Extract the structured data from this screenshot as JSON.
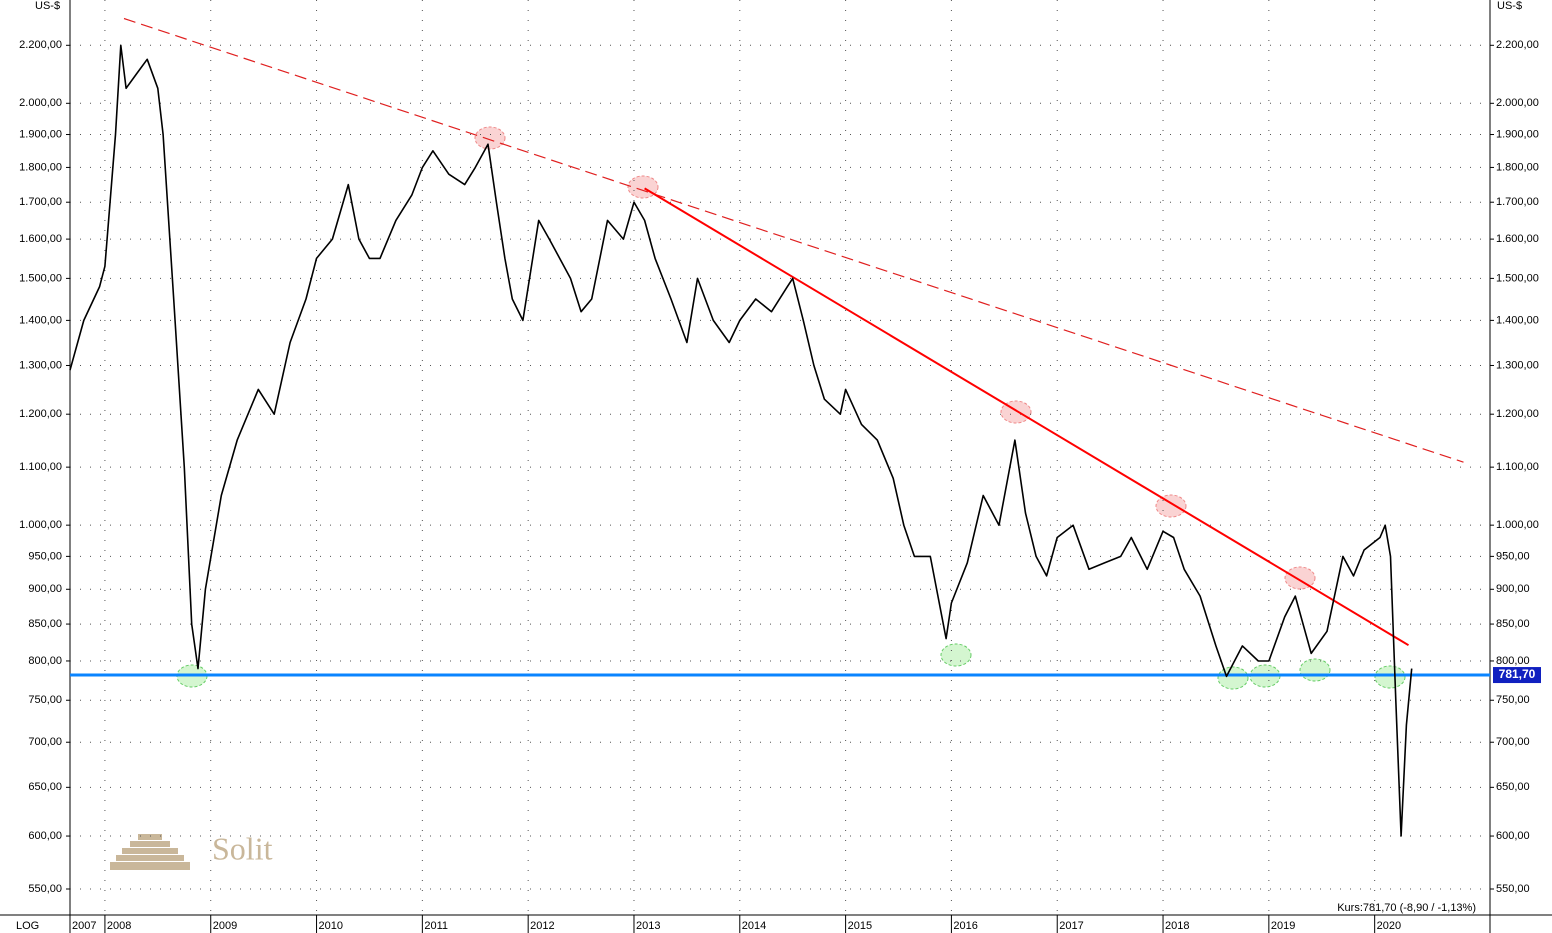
{
  "chart_data": {
    "type": "line",
    "unit_left": "US-$",
    "unit_right": "US-$",
    "scale_label": "LOG",
    "log_scale": true,
    "grid": true,
    "logo": "Solit",
    "footnote": "Kurs:781,70 (-8,90 / -1,13%)",
    "xlim": [
      2007.67,
      2021.09
    ],
    "xticks": [
      {
        "value": 2007.67,
        "label": "2007"
      },
      2008,
      2009,
      2010,
      2011,
      2012,
      2013,
      2014,
      2015,
      2016,
      2017,
      2018,
      2019,
      2020
    ],
    "ylim": [
      527,
      2370
    ],
    "yticks": [
      {
        "value": 550,
        "label": "550,00"
      },
      {
        "value": 600,
        "label": "600,00"
      },
      {
        "value": 650,
        "label": "650,00"
      },
      {
        "value": 700,
        "label": "700,00"
      },
      {
        "value": 750,
        "label": "750,00"
      },
      {
        "value": 800,
        "label": "800,00"
      },
      {
        "value": 850,
        "label": "850,00"
      },
      {
        "value": 900,
        "label": "900,00"
      },
      {
        "value": 950,
        "label": "950,00"
      },
      {
        "value": 1000,
        "label": "1.000,00"
      },
      {
        "value": 1100,
        "label": "1.100,00"
      },
      {
        "value": 1200,
        "label": "1.200,00"
      },
      {
        "value": 1300,
        "label": "1.300,00"
      },
      {
        "value": 1400,
        "label": "1.400,00"
      },
      {
        "value": 1500,
        "label": "1.500,00"
      },
      {
        "value": 1600,
        "label": "1.600,00"
      },
      {
        "value": 1700,
        "label": "1.700,00"
      },
      {
        "value": 1800,
        "label": "1.800,00"
      },
      {
        "value": 1900,
        "label": "1.900,00"
      },
      {
        "value": 2000,
        "label": "2.000,00"
      },
      {
        "value": 2200,
        "label": "2.200,00"
      }
    ],
    "series": [
      {
        "color": "#000000",
        "x": [
          2007.67,
          2007.8,
          2007.95,
          2008.0,
          2008.1,
          2008.15,
          2008.2,
          2008.3,
          2008.4,
          2008.5,
          2008.55,
          2008.65,
          2008.75,
          2008.82,
          2008.88,
          2008.95,
          2009.1,
          2009.25,
          2009.45,
          2009.6,
          2009.75,
          2009.9,
          2010.0,
          2010.15,
          2010.3,
          2010.4,
          2010.5,
          2010.6,
          2010.75,
          2010.9,
          2011.0,
          2011.1,
          2011.25,
          2011.4,
          2011.5,
          2011.62,
          2011.7,
          2011.78,
          2011.85,
          2011.95,
          2012.1,
          2012.2,
          2012.4,
          2012.5,
          2012.6,
          2012.75,
          2012.9,
          2013.0,
          2013.1,
          2013.2,
          2013.35,
          2013.5,
          2013.6,
          2013.75,
          2013.9,
          2014.0,
          2014.15,
          2014.3,
          2014.45,
          2014.5,
          2014.6,
          2014.7,
          2014.8,
          2014.95,
          2015.0,
          2015.15,
          2015.3,
          2015.45,
          2015.55,
          2015.65,
          2015.8,
          2015.95,
          2016.0,
          2016.15,
          2016.3,
          2016.45,
          2016.6,
          2016.7,
          2016.8,
          2016.9,
          2017.0,
          2017.15,
          2017.3,
          2017.45,
          2017.6,
          2017.7,
          2017.85,
          2018.0,
          2018.1,
          2018.2,
          2018.35,
          2018.5,
          2018.6,
          2018.75,
          2018.9,
          2019.0,
          2019.15,
          2019.25,
          2019.4,
          2019.55,
          2019.7,
          2019.8,
          2019.9,
          2020.05,
          2020.1,
          2020.15,
          2020.2,
          2020.25,
          2020.3,
          2020.35
        ],
        "values": [
          1290,
          1400,
          1480,
          1530,
          1900,
          2200,
          2050,
          2100,
          2150,
          2050,
          1900,
          1450,
          1100,
          850,
          790,
          900,
          1050,
          1150,
          1250,
          1200,
          1350,
          1450,
          1550,
          1600,
          1750,
          1600,
          1550,
          1550,
          1650,
          1720,
          1800,
          1850,
          1780,
          1750,
          1800,
          1870,
          1700,
          1550,
          1450,
          1400,
          1650,
          1600,
          1500,
          1420,
          1450,
          1650,
          1600,
          1700,
          1650,
          1550,
          1450,
          1350,
          1500,
          1400,
          1350,
          1400,
          1450,
          1420,
          1480,
          1500,
          1400,
          1300,
          1230,
          1200,
          1250,
          1180,
          1150,
          1080,
          1000,
          950,
          950,
          830,
          880,
          940,
          1050,
          1000,
          1150,
          1020,
          950,
          920,
          980,
          1000,
          930,
          940,
          950,
          980,
          930,
          990,
          980,
          930,
          890,
          820,
          780,
          820,
          800,
          800,
          860,
          890,
          810,
          840,
          950,
          920,
          960,
          980,
          1000,
          950,
          750,
          600,
          720,
          790
        ]
      }
    ],
    "trendlines": [
      {
        "x": [
          2008.18,
          2020.84
        ],
        "values": [
          2299,
          1109
        ],
        "color": "#e02020",
        "dashed": true
      },
      {
        "x": [
          2013.1,
          2020.32
        ],
        "values": [
          1739,
          821
        ],
        "color": "#ff0000",
        "dashed": false
      }
    ],
    "hline": {
      "value": 781.7,
      "label": "781,70",
      "color": "#0a84ff"
    }
  }
}
